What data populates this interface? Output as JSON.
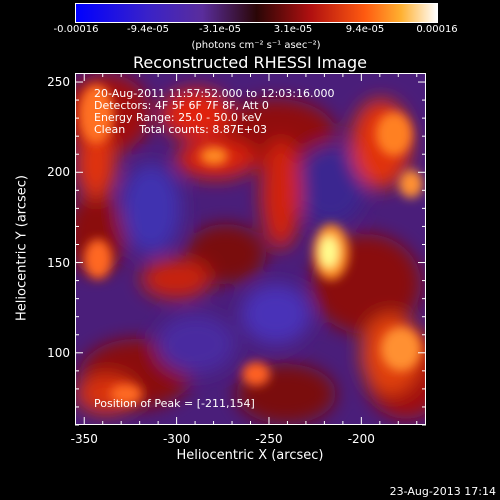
{
  "colorbar": {
    "tick_labels": [
      "-0.00016",
      "-9.4e-05",
      "-3.1e-05",
      "3.1e-05",
      "9.4e-05",
      "0.00016"
    ],
    "range": [
      -0.00016,
      0.00016
    ],
    "unit_label": "(photons cm⁻² s⁻¹ asec⁻²)",
    "colors": [
      "#0000ff",
      "#5a2d9c",
      "#3a0a0a",
      "#d01010",
      "#ff8020",
      "#ffffa0"
    ]
  },
  "chart_data": {
    "type": "heatmap",
    "title": "Reconstructed RHESSI Image",
    "xlabel": "Heliocentric X (arcsec)",
    "ylabel": "Heliocentric Y (arcsec)",
    "xlim": [
      -355,
      -165
    ],
    "ylim": [
      60,
      255
    ],
    "x_ticks": [
      -350,
      -300,
      -250,
      -200
    ],
    "y_ticks": [
      100,
      150,
      200,
      250
    ],
    "annotations": [
      "20-Aug-2011 11:57:52.000 to 12:03:16.000",
      "Detectors: 4F 5F 6F 7F 8F, Att 0",
      "Energy Range: 25.0 - 50.0 keV",
      "Clean    Total counts: 8.87E+03"
    ],
    "peak_label": "Position of Peak = [-211,154]",
    "peak": [
      -211,
      154
    ]
  },
  "footer": "23-Aug-2013 17:14"
}
